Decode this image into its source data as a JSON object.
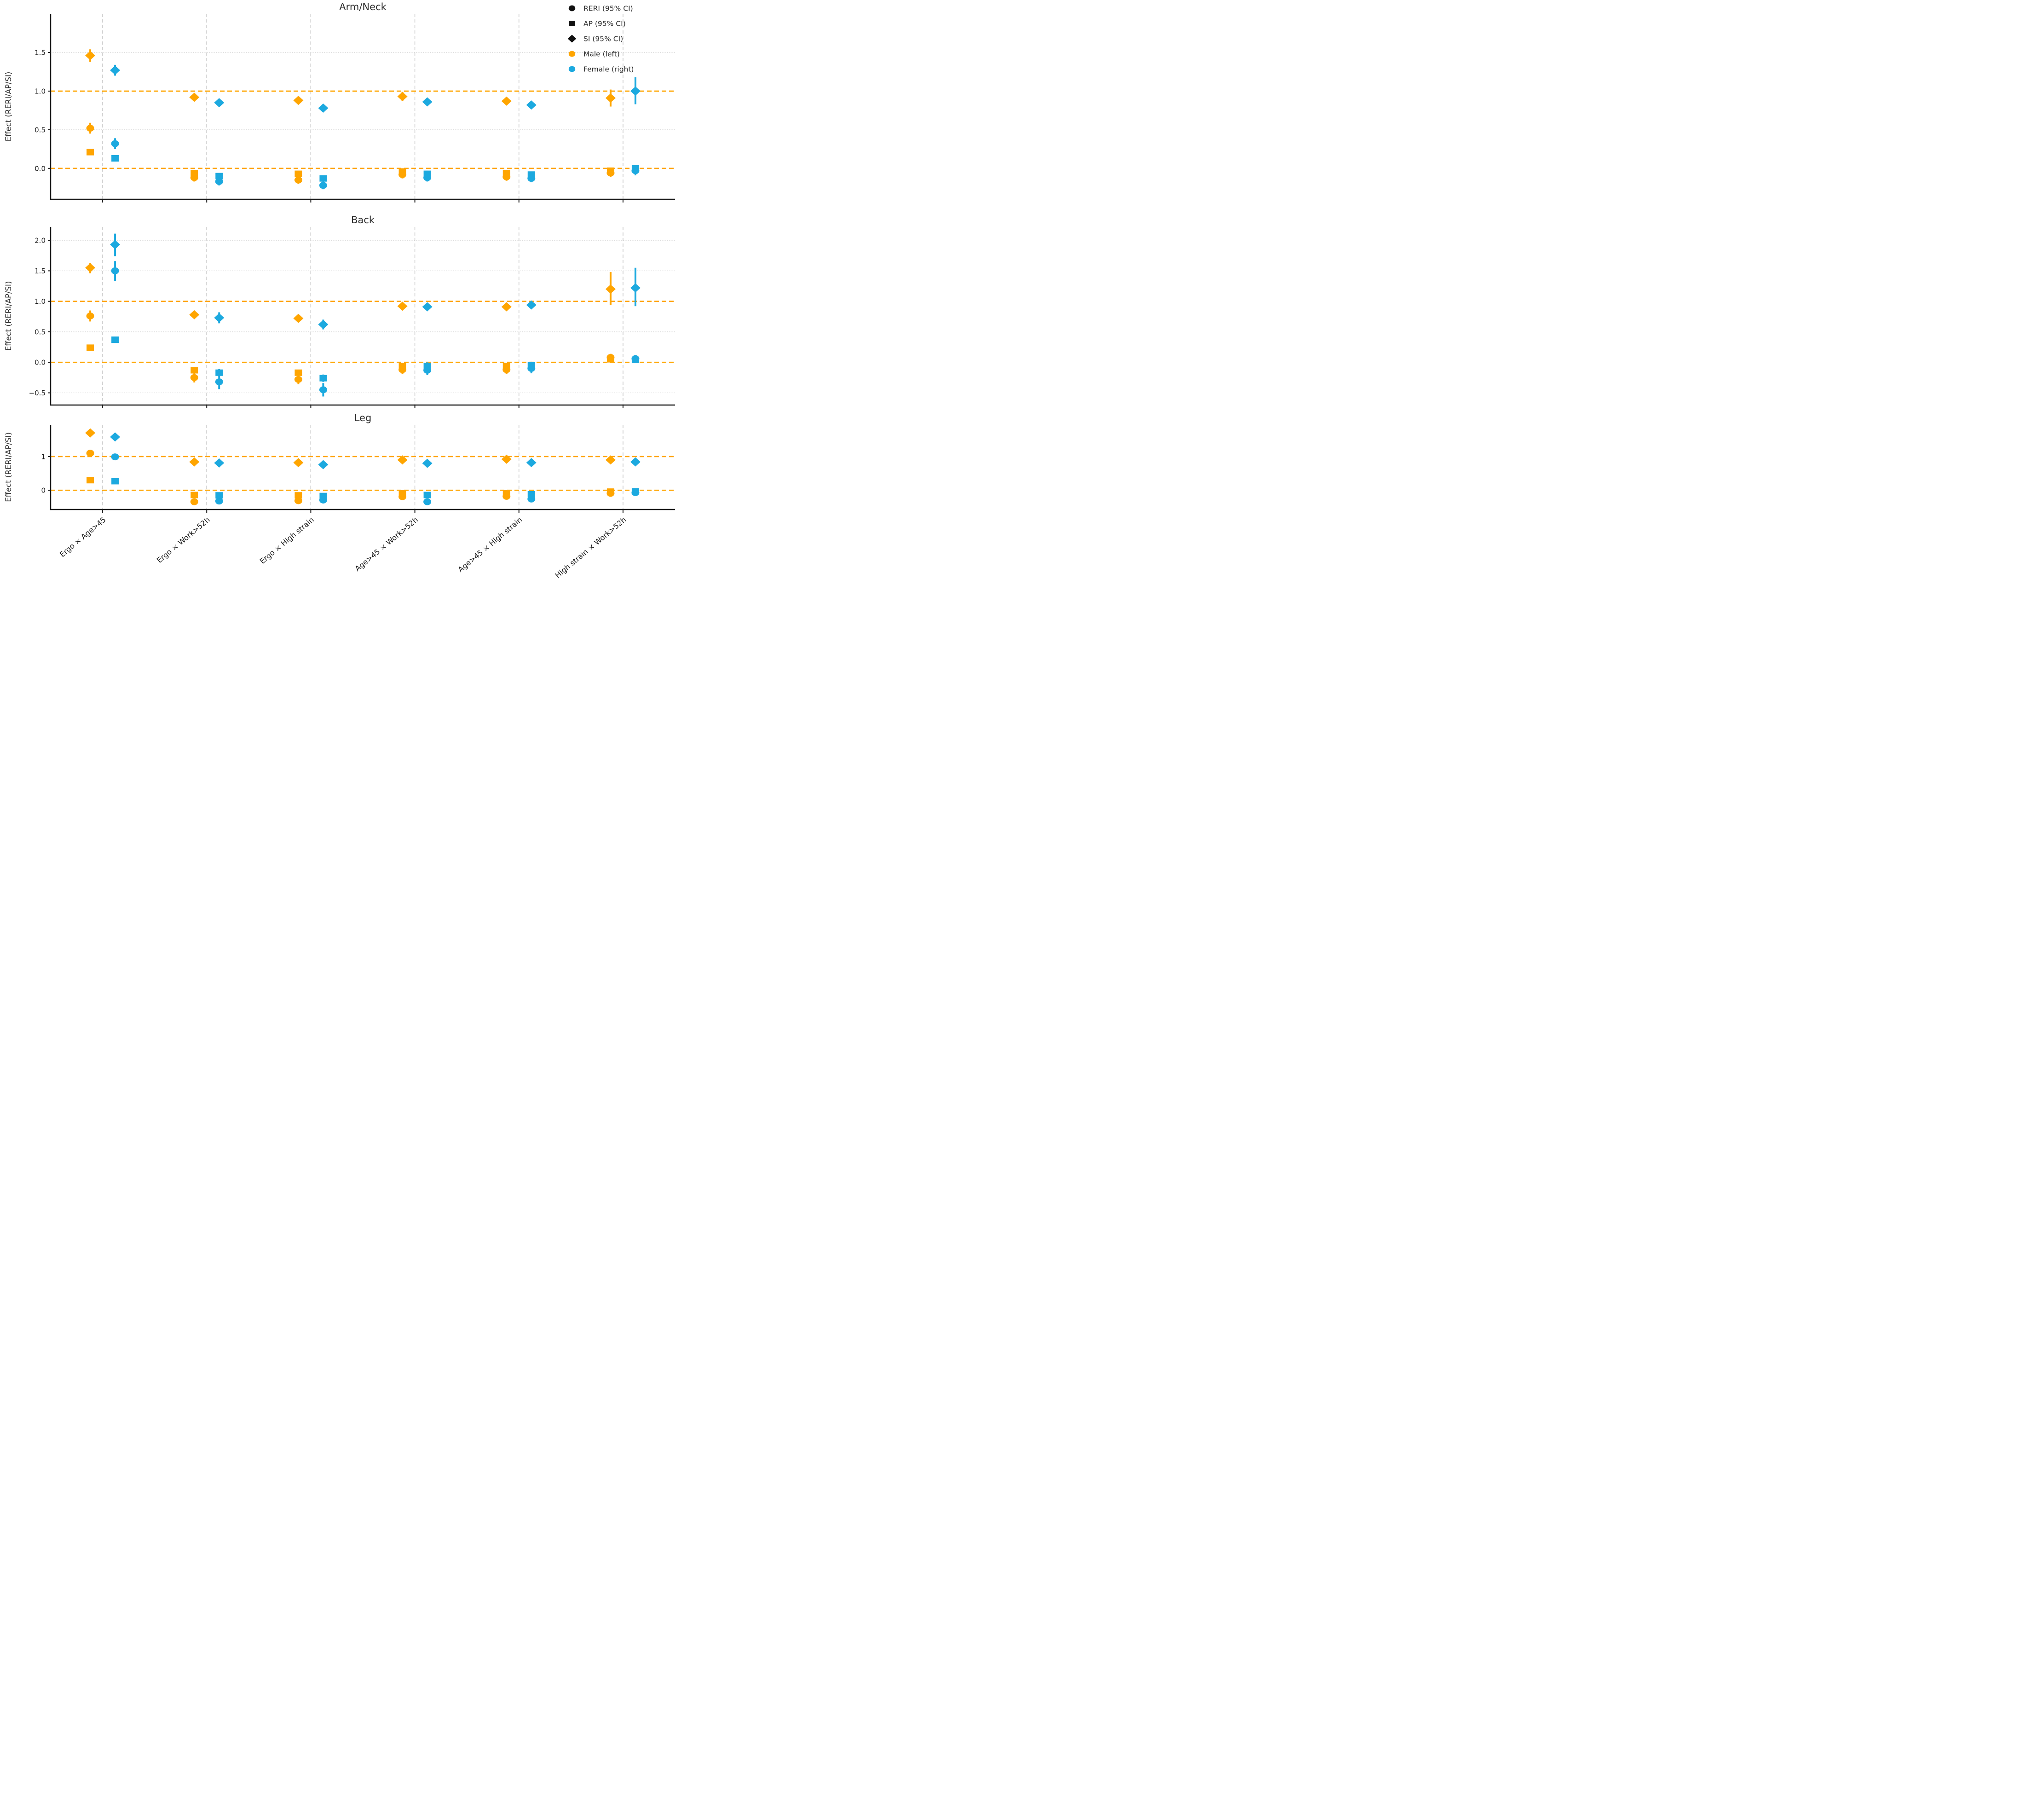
{
  "figure": {
    "legend": {
      "position": "upper right",
      "items": [
        {
          "marker": "circle",
          "color": "#111111",
          "label": "RERI (95% CI)"
        },
        {
          "marker": "square",
          "color": "#111111",
          "label": "AP (95% CI)"
        },
        {
          "marker": "diamond",
          "color": "#111111",
          "label": "SI (95% CI)"
        },
        {
          "marker": "circle",
          "color": "#FFA500",
          "label": "Male (left)"
        },
        {
          "marker": "circle",
          "color": "#1CA9DF",
          "label": "Female (right)"
        }
      ]
    },
    "colors": {
      "male": "#FFA500",
      "female": "#1CA9DF",
      "reference_line": "#FFA500",
      "grid_dotted": "#cfcfcf",
      "separator_dashed": "#bdbdbd",
      "axis": "#1a1a1a",
      "text": "#2b2b2b"
    },
    "ylabel": "Effect (RERI/AP/SI)",
    "x_categories": [
      "Ergo × Age>45",
      "Ergo × Work>52h",
      "Ergo × High strain",
      "Age>45 × Work>52h",
      "Age>45 × High strain",
      "High strain × Work>52h"
    ],
    "x_label_rotation_deg": 40,
    "reference_values": [
      0,
      1
    ],
    "note": "Each category shows Male (orange, left of dashed separator) and Female (blue, right). Markers: circle=RERI, square=AP, diamond=SI; vertical bars are 95% CI."
  },
  "chart_data": [
    {
      "type": "scatter",
      "title": "Arm/Neck",
      "ylabel": "Effect (RERI/AP/SI)",
      "ylim": [
        -0.4,
        2.0
      ],
      "yticks": [
        0.0,
        0.5,
        1.0,
        1.5
      ],
      "ytick_labels": [
        "0.0",
        "0.5",
        "1.0",
        "1.5"
      ],
      "show_x_tick_labels": false,
      "categories": [
        "Ergo × Age>45",
        "Ergo × Work>52h",
        "Ergo × High strain",
        "Age>45 × Work>52h",
        "Age>45 × High strain",
        "High strain × Work>52h"
      ],
      "series": [
        {
          "name": "Male",
          "measures": {
            "RERI": [
              [
                0.52,
                0.45,
                0.59
              ],
              [
                -0.12,
                -0.17,
                -0.07
              ],
              [
                -0.15,
                -0.2,
                -0.1
              ],
              [
                -0.08,
                -0.13,
                -0.03
              ],
              [
                -0.11,
                -0.16,
                -0.06
              ],
              [
                -0.06,
                -0.11,
                -0.01
              ]
            ],
            "AP": [
              [
                0.21,
                0.17,
                0.25
              ],
              [
                -0.06,
                -0.1,
                -0.02
              ],
              [
                -0.07,
                -0.11,
                -0.03
              ],
              [
                -0.04,
                -0.08,
                0.0
              ],
              [
                -0.06,
                -0.1,
                -0.02
              ],
              [
                -0.03,
                -0.07,
                0.01
              ]
            ],
            "SI": [
              [
                1.46,
                1.38,
                1.54
              ],
              [
                0.92,
                0.87,
                0.97
              ],
              [
                0.88,
                0.83,
                0.93
              ],
              [
                0.93,
                0.87,
                0.99
              ],
              [
                0.87,
                0.82,
                0.92
              ],
              [
                0.91,
                0.8,
                1.02
              ]
            ]
          }
        },
        {
          "name": "Female",
          "measures": {
            "RERI": [
              [
                0.32,
                0.25,
                0.39
              ],
              [
                -0.17,
                -0.22,
                -0.12
              ],
              [
                -0.22,
                -0.27,
                -0.17
              ],
              [
                -0.12,
                -0.17,
                -0.07
              ],
              [
                -0.13,
                -0.18,
                -0.08
              ],
              [
                -0.03,
                -0.09,
                0.03
              ]
            ],
            "AP": [
              [
                0.13,
                0.09,
                0.17
              ],
              [
                -0.1,
                -0.14,
                -0.06
              ],
              [
                -0.13,
                -0.17,
                -0.09
              ],
              [
                -0.07,
                -0.11,
                -0.03
              ],
              [
                -0.08,
                -0.12,
                -0.04
              ],
              [
                0.0,
                -0.04,
                0.04
              ]
            ],
            "SI": [
              [
                1.27,
                1.2,
                1.34
              ],
              [
                0.85,
                0.8,
                0.9
              ],
              [
                0.78,
                0.73,
                0.83
              ],
              [
                0.86,
                0.81,
                0.91
              ],
              [
                0.82,
                0.77,
                0.87
              ],
              [
                1.0,
                0.83,
                1.18
              ]
            ]
          }
        }
      ]
    },
    {
      "type": "scatter",
      "title": "Back",
      "ylabel": "Effect (RERI/AP/SI)",
      "ylim": [
        -0.7,
        2.22
      ],
      "yticks": [
        -0.5,
        0.0,
        0.5,
        1.0,
        1.5,
        2.0
      ],
      "ytick_labels": [
        "−0.5",
        "0.0",
        "0.5",
        "1.0",
        "1.5",
        "2.0"
      ],
      "show_x_tick_labels": false,
      "categories": [
        "Ergo × Age>45",
        "Ergo × Work>52h",
        "Ergo × High strain",
        "Age>45 × Work>52h",
        "Age>45 × High strain",
        "High strain × Work>52h"
      ],
      "series": [
        {
          "name": "Male",
          "measures": {
            "RERI": [
              [
                0.76,
                0.67,
                0.85
              ],
              [
                -0.25,
                -0.33,
                -0.17
              ],
              [
                -0.28,
                -0.36,
                -0.2
              ],
              [
                -0.12,
                -0.19,
                -0.05
              ],
              [
                -0.12,
                -0.19,
                -0.05
              ],
              [
                0.08,
                0.02,
                0.14
              ]
            ],
            "AP": [
              [
                0.24,
                0.2,
                0.28
              ],
              [
                -0.13,
                -0.18,
                -0.08
              ],
              [
                -0.17,
                -0.22,
                -0.12
              ],
              [
                -0.06,
                -0.11,
                -0.01
              ],
              [
                -0.06,
                -0.11,
                -0.01
              ],
              [
                0.05,
                0.0,
                0.1
              ]
            ],
            "SI": [
              [
                1.55,
                1.46,
                1.63
              ],
              [
                0.78,
                0.73,
                0.83
              ],
              [
                0.72,
                0.67,
                0.77
              ],
              [
                0.92,
                0.87,
                0.97
              ],
              [
                0.91,
                0.85,
                0.97
              ],
              [
                1.2,
                0.94,
                1.48
              ]
            ]
          }
        },
        {
          "name": "Female",
          "measures": {
            "RERI": [
              [
                1.5,
                1.33,
                1.66
              ],
              [
                -0.32,
                -0.44,
                -0.2
              ],
              [
                -0.45,
                -0.56,
                -0.34
              ],
              [
                -0.13,
                -0.21,
                -0.05
              ],
              [
                -0.1,
                -0.18,
                -0.02
              ],
              [
                0.06,
                0.0,
                0.12
              ]
            ],
            "AP": [
              [
                0.37,
                0.32,
                0.42
              ],
              [
                -0.17,
                -0.23,
                -0.11
              ],
              [
                -0.26,
                -0.32,
                -0.2
              ],
              [
                -0.06,
                -0.12,
                0.0
              ],
              [
                -0.05,
                -0.11,
                0.01
              ],
              [
                0.04,
                -0.01,
                0.09
              ]
            ],
            "SI": [
              [
                1.93,
                1.74,
                2.11
              ],
              [
                0.73,
                0.64,
                0.82
              ],
              [
                0.62,
                0.54,
                0.7
              ],
              [
                0.91,
                0.85,
                0.97
              ],
              [
                0.94,
                0.88,
                1.0
              ],
              [
                1.22,
                0.92,
                1.55
              ]
            ]
          }
        }
      ]
    },
    {
      "type": "scatter",
      "title": "Leg",
      "ylabel": "Effect (RERI/AP/SI)",
      "ylim": [
        -0.57,
        1.94
      ],
      "yticks": [
        0,
        1
      ],
      "ytick_labels": [
        "0",
        "1"
      ],
      "show_x_tick_labels": true,
      "categories": [
        "Ergo × Age>45",
        "Ergo × Work>52h",
        "Ergo × High strain",
        "Age>45 × Work>52h",
        "Age>45 × High strain",
        "High strain × Work>52h"
      ],
      "series": [
        {
          "name": "Male",
          "measures": {
            "RERI": [
              [
                1.1,
                1.04,
                1.16
              ],
              [
                -0.34,
                -0.41,
                -0.27
              ],
              [
                -0.31,
                -0.38,
                -0.24
              ],
              [
                -0.19,
                -0.28,
                -0.1
              ],
              [
                -0.18,
                -0.27,
                -0.09
              ],
              [
                -0.09,
                -0.14,
                -0.04
              ]
            ],
            "AP": [
              [
                0.3,
                0.26,
                0.34
              ],
              [
                -0.14,
                -0.19,
                -0.09
              ],
              [
                -0.15,
                -0.2,
                -0.1
              ],
              [
                -0.09,
                -0.14,
                -0.04
              ],
              [
                -0.09,
                -0.14,
                -0.04
              ],
              [
                -0.04,
                -0.08,
                0.0
              ]
            ],
            "SI": [
              [
                1.7,
                1.64,
                1.76
              ],
              [
                0.84,
                0.79,
                0.89
              ],
              [
                0.82,
                0.77,
                0.87
              ],
              [
                0.9,
                0.85,
                0.95
              ],
              [
                0.92,
                0.87,
                0.97
              ],
              [
                0.9,
                0.85,
                0.95
              ]
            ]
          }
        },
        {
          "name": "Female",
          "measures": {
            "RERI": [
              [
                0.99,
                0.93,
                1.05
              ],
              [
                -0.32,
                -0.4,
                -0.24
              ],
              [
                -0.29,
                -0.37,
                -0.21
              ],
              [
                -0.34,
                -0.43,
                -0.25
              ],
              [
                -0.26,
                -0.34,
                -0.18
              ],
              [
                -0.07,
                -0.13,
                -0.01
              ]
            ],
            "AP": [
              [
                0.27,
                0.23,
                0.31
              ],
              [
                -0.15,
                -0.2,
                -0.1
              ],
              [
                -0.17,
                -0.22,
                -0.12
              ],
              [
                -0.14,
                -0.2,
                -0.08
              ],
              [
                -0.12,
                -0.17,
                -0.07
              ],
              [
                -0.03,
                -0.07,
                0.01
              ]
            ],
            "SI": [
              [
                1.58,
                1.52,
                1.64
              ],
              [
                0.81,
                0.75,
                0.87
              ],
              [
                0.76,
                0.7,
                0.82
              ],
              [
                0.8,
                0.74,
                0.86
              ],
              [
                0.82,
                0.76,
                0.88
              ],
              [
                0.84,
                0.75,
                0.93
              ]
            ]
          }
        }
      ]
    }
  ]
}
